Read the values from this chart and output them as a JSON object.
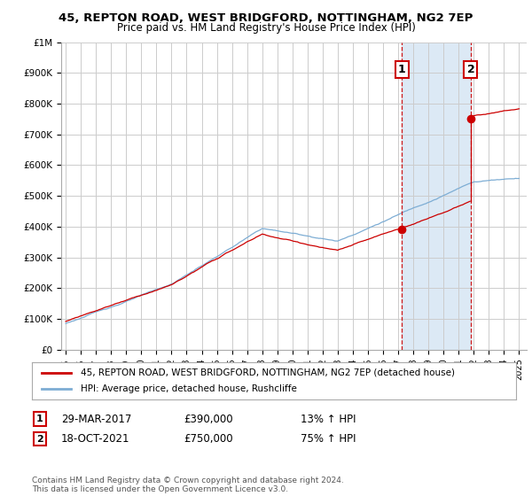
{
  "title": "45, REPTON ROAD, WEST BRIDGFORD, NOTTINGHAM, NG2 7EP",
  "subtitle": "Price paid vs. HM Land Registry's House Price Index (HPI)",
  "red_label": "45, REPTON ROAD, WEST BRIDGFORD, NOTTINGHAM, NG2 7EP (detached house)",
  "blue_label": "HPI: Average price, detached house, Rushcliffe",
  "transaction1_date": "29-MAR-2017",
  "transaction1_price": 390000,
  "transaction1_hpi": "13% ↑ HPI",
  "transaction1_year": 2017.23,
  "transaction2_date": "18-OCT-2021",
  "transaction2_price": 750000,
  "transaction2_hpi": "75% ↑ HPI",
  "transaction2_year": 2021.8,
  "ylim": [
    0,
    1000000
  ],
  "xlim_start": 1994.7,
  "xlim_end": 2025.5,
  "ylabel_ticks": [
    0,
    100000,
    200000,
    300000,
    400000,
    500000,
    600000,
    700000,
    800000,
    900000,
    1000000
  ],
  "ylabel_labels": [
    "£0",
    "£100K",
    "£200K",
    "£300K",
    "£400K",
    "£500K",
    "£600K",
    "£700K",
    "£800K",
    "£900K",
    "£1M"
  ],
  "red_color": "#cc0000",
  "blue_color": "#7dadd4",
  "shade_color": "#dce9f5",
  "dashed_color": "#cc0000",
  "background_color": "#ffffff",
  "grid_color": "#cccccc",
  "marker_box_color": "#cc0000",
  "footnote": "Contains HM Land Registry data © Crown copyright and database right 2024.\nThis data is licensed under the Open Government Licence v3.0."
}
